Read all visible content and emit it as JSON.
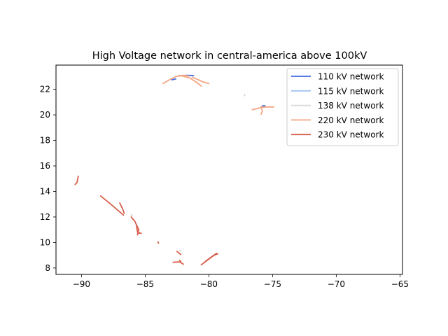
{
  "chart_data": {
    "type": "line",
    "title": "High Voltage network in central-america above 100kV",
    "xlabel": "",
    "ylabel": "",
    "xlim": [
      -92,
      -64.8
    ],
    "ylim": [
      7.5,
      23.9
    ],
    "xticks": [
      -90,
      -85,
      -80,
      -75,
      -70,
      -65
    ],
    "xtick_labels": [
      "−90",
      "−85",
      "−80",
      "−75",
      "−70",
      "−65"
    ],
    "yticks": [
      8,
      10,
      12,
      14,
      16,
      18,
      20,
      22
    ],
    "ytick_labels": [
      "8",
      "10",
      "12",
      "14",
      "16",
      "18",
      "20",
      "22"
    ],
    "grid": false,
    "legend": "top-right",
    "series": [
      {
        "name": "110 kV network",
        "color": "#4169e1",
        "segments": [
          [
            [
              -82.9,
              22.75
            ],
            [
              -82.6,
              22.82
            ]
          ],
          [
            [
              -81.8,
              23.1
            ],
            [
              -81.2,
              23.08
            ]
          ],
          [
            [
              -75.8,
              20.7
            ],
            [
              -75.6,
              20.72
            ]
          ]
        ]
      },
      {
        "name": "115 kV network",
        "color": "#a3c4f0",
        "segments": [
          [
            [
              -82.4,
              23.05
            ],
            [
              -82.1,
              23.08
            ]
          ]
        ]
      },
      {
        "name": "138 kV network",
        "color": "#d9d9d9",
        "segments": [
          [
            [
              -77.2,
              21.5
            ],
            [
              -77.18,
              21.6
            ]
          ],
          [
            [
              -86.1,
              12.2
            ],
            [
              -86.0,
              12.1
            ]
          ],
          [
            [
              -82.3,
              9.4
            ],
            [
              -82.2,
              9.35
            ]
          ]
        ]
      },
      {
        "name": "220 kV network",
        "color": "#f4a582",
        "segments": [
          [
            [
              -83.6,
              22.45
            ],
            [
              -83.1,
              22.75
            ],
            [
              -82.6,
              23.0
            ],
            [
              -82.0,
              23.1
            ],
            [
              -81.6,
              23.05
            ]
          ],
          [
            [
              -82.3,
              23.1
            ],
            [
              -81.5,
              22.9
            ],
            [
              -80.9,
              22.5
            ],
            [
              -80.6,
              22.25
            ]
          ],
          [
            [
              -81.3,
              22.95
            ],
            [
              -80.5,
              22.6
            ],
            [
              -80.0,
              22.45
            ]
          ],
          [
            [
              -76.6,
              20.4
            ],
            [
              -76.2,
              20.5
            ],
            [
              -75.8,
              20.6
            ],
            [
              -75.4,
              20.62
            ],
            [
              -74.9,
              20.62
            ]
          ],
          [
            [
              -75.9,
              20.65
            ],
            [
              -75.8,
              20.3
            ],
            [
              -75.9,
              20.05
            ]
          ]
        ]
      },
      {
        "name": "230 kV network",
        "color": "#d6604d",
        "segments": [
          [
            [
              -90.5,
              14.55
            ],
            [
              -90.35,
              14.7
            ],
            [
              -90.3,
              14.95
            ],
            [
              -90.25,
              15.2
            ]
          ],
          [
            [
              -88.5,
              13.65
            ],
            [
              -88.0,
              13.25
            ],
            [
              -87.4,
              12.75
            ],
            [
              -87.0,
              12.4
            ],
            [
              -86.7,
              12.15
            ]
          ],
          [
            [
              -87.0,
              13.1
            ],
            [
              -86.8,
              12.7
            ],
            [
              -86.65,
              12.3
            ]
          ],
          [
            [
              -86.1,
              12.0
            ],
            [
              -85.8,
              11.65
            ],
            [
              -85.65,
              11.3
            ],
            [
              -85.5,
              11.0
            ],
            [
              -85.6,
              10.6
            ]
          ],
          [
            [
              -85.7,
              11.4
            ],
            [
              -85.6,
              10.8
            ]
          ],
          [
            [
              -85.55,
              10.75
            ],
            [
              -85.3,
              10.72
            ]
          ],
          [
            [
              -84.0,
              10.05
            ],
            [
              -83.95,
              9.95
            ]
          ],
          [
            [
              -82.5,
              9.3
            ],
            [
              -82.2,
              9.05
            ]
          ],
          [
            [
              -82.8,
              8.45
            ],
            [
              -82.3,
              8.48
            ],
            [
              -82.0,
              8.3
            ]
          ],
          [
            [
              -82.3,
              8.6
            ],
            [
              -82.2,
              8.5
            ]
          ],
          [
            [
              -80.6,
              8.25
            ],
            [
              -80.2,
              8.55
            ],
            [
              -79.8,
              8.85
            ],
            [
              -79.5,
              9.05
            ],
            [
              -79.3,
              9.1
            ]
          ],
          [
            [
              -80.3,
              8.5
            ],
            [
              -79.9,
              8.8
            ],
            [
              -79.4,
              9.15
            ]
          ]
        ]
      }
    ]
  }
}
